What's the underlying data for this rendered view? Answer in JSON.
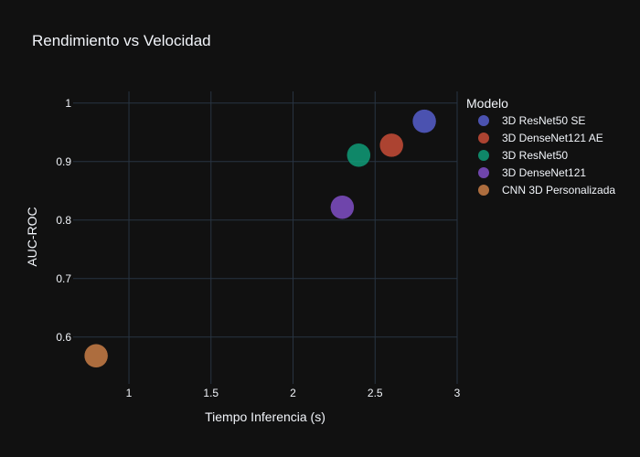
{
  "chart_data": {
    "type": "scatter",
    "title": "Rendimiento vs Velocidad",
    "xlabel": "Tiempo Inferencia (s)",
    "ylabel": "AUC-ROC",
    "xlim": [
      0.66,
      3.0
    ],
    "ylim": [
      0.52,
      1.02
    ],
    "xticks": [
      {
        "value": 1,
        "label": "1"
      },
      {
        "value": 1.5,
        "label": "1.5"
      },
      {
        "value": 2,
        "label": "2"
      },
      {
        "value": 2.5,
        "label": "2.5"
      },
      {
        "value": 3,
        "label": "3"
      }
    ],
    "yticks": [
      {
        "value": 0.6,
        "label": "0.6"
      },
      {
        "value": 0.7,
        "label": "0.7"
      },
      {
        "value": 0.8,
        "label": "0.8"
      },
      {
        "value": 0.9,
        "label": "0.9"
      },
      {
        "value": 1,
        "label": "1"
      }
    ],
    "grid": true,
    "legend_title": "Modelo",
    "legend_position": "right",
    "series": [
      {
        "name": "3D ResNet50 SE",
        "color": "#5a63d8",
        "x": 2.8,
        "y": 0.969
      },
      {
        "name": "3D DenseNet121 AE",
        "color": "#d3503a",
        "x": 2.6,
        "y": 0.928
      },
      {
        "name": "3D ResNet50",
        "color": "#0fa57e",
        "x": 2.4,
        "y": 0.911
      },
      {
        "name": "3D DenseNet121",
        "color": "#8753d2",
        "x": 2.3,
        "y": 0.822
      },
      {
        "name": "CNN 3D Personalizada",
        "color": "#d5854a",
        "x": 0.8,
        "y": 0.568
      }
    ]
  }
}
